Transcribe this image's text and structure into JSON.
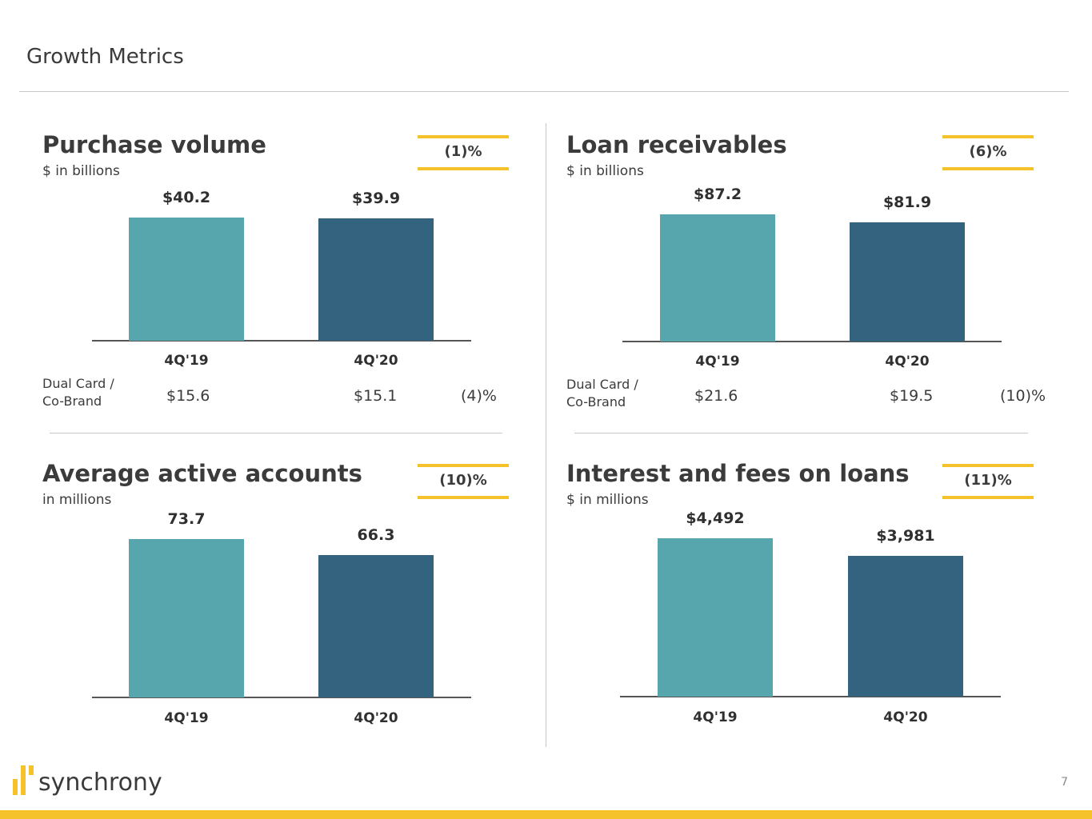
{
  "title": "Growth Metrics",
  "page_number": "7",
  "brand": "synchrony",
  "colors": {
    "prior": "#58a6ad",
    "current": "#34637f",
    "accent": "#f6c22b"
  },
  "chart_data": [
    {
      "type": "bar",
      "title": "Purchase volume",
      "subtitle": "$ in billions",
      "change": "(1)%",
      "categories": [
        "4Q'19",
        "4Q'20"
      ],
      "values": [
        40.2,
        39.9
      ],
      "labels": [
        "$40.2",
        "$39.9"
      ],
      "sub_metric": {
        "label_line1": "Dual Card /",
        "label_line2": "Co-Brand",
        "values": [
          "$15.6",
          "$15.1"
        ],
        "change": "(4)%"
      }
    },
    {
      "type": "bar",
      "title": "Loan receivables",
      "subtitle": "$ in billions",
      "change": "(6)%",
      "categories": [
        "4Q'19",
        "4Q'20"
      ],
      "values": [
        87.2,
        81.9
      ],
      "labels": [
        "$87.2",
        "$81.9"
      ],
      "sub_metric": {
        "label_line1": "Dual Card /",
        "label_line2": "Co-Brand",
        "values": [
          "$21.6",
          "$19.5"
        ],
        "change": "(10)%"
      }
    },
    {
      "type": "bar",
      "title": "Average active accounts",
      "subtitle": "in millions",
      "change": "(10)%",
      "categories": [
        "4Q'19",
        "4Q'20"
      ],
      "values": [
        73.7,
        66.3
      ],
      "labels": [
        "73.7",
        "66.3"
      ]
    },
    {
      "type": "bar",
      "title": "Interest and fees on loans",
      "subtitle": "$ in millions",
      "change": "(11)%",
      "categories": [
        "4Q'19",
        "4Q'20"
      ],
      "values": [
        4492,
        3981
      ],
      "labels": [
        "$4,492",
        "$3,981"
      ]
    }
  ]
}
